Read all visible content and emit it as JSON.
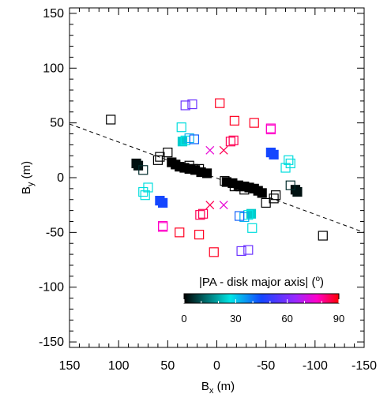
{
  "chart_data": {
    "type": "scatter",
    "title": "",
    "xlabel": "B",
    "xlabel_sub": "x",
    "xlabel_unit": " (m)",
    "ylabel": "B",
    "ylabel_sub": "y",
    "ylabel_unit": " (m)",
    "xlim": [
      150,
      -150
    ],
    "ylim": [
      -155,
      155
    ],
    "x_ticks": [
      150,
      100,
      50,
      0,
      -50,
      -100,
      -150
    ],
    "y_ticks": [
      150,
      100,
      50,
      0,
      -50,
      -100,
      -150
    ],
    "x_tick_labels": [
      "150",
      "100",
      "50",
      "0",
      "-50",
      "-100",
      "-150"
    ],
    "y_tick_labels": [
      "150",
      "100",
      "50",
      "0",
      "-50",
      "-100",
      "-150"
    ],
    "grid": false,
    "colorbar": {
      "label_prefix": "|PA - disk major axis| (",
      "label_super": "o",
      "label_suffix": ")",
      "ticks": [
        0,
        30,
        60,
        90
      ],
      "tick_labels": [
        "0",
        "30",
        "60",
        "90"
      ],
      "range": [
        0,
        90
      ]
    },
    "dashed_line": {
      "x": [
        150,
        -150
      ],
      "y": [
        49,
        -50
      ]
    },
    "points": [
      {
        "x": 108,
        "y": 53,
        "pa": 0,
        "filled": false
      },
      {
        "x": -108,
        "y": -53,
        "pa": 0,
        "filled": false
      },
      {
        "x": 82,
        "y": 13,
        "pa": 2,
        "filled": true
      },
      {
        "x": 80,
        "y": 11,
        "pa": 2,
        "filled": true
      },
      {
        "x": -82,
        "y": -13,
        "pa": 2,
        "filled": true
      },
      {
        "x": -80,
        "y": -11,
        "pa": 2,
        "filled": true
      },
      {
        "x": 75,
        "y": 7,
        "pa": 5,
        "filled": false
      },
      {
        "x": -75,
        "y": -7,
        "pa": 5,
        "filled": false
      },
      {
        "x": 60,
        "y": 16,
        "pa": 0,
        "filled": false
      },
      {
        "x": 58,
        "y": 19,
        "pa": 0,
        "filled": false
      },
      {
        "x": 50,
        "y": 23,
        "pa": 0,
        "filled": false
      },
      {
        "x": -60,
        "y": -16,
        "pa": 0,
        "filled": false
      },
      {
        "x": -58,
        "y": -19,
        "pa": 0,
        "filled": false
      },
      {
        "x": -50,
        "y": -23,
        "pa": 0,
        "filled": false
      },
      {
        "x": 46,
        "y": 14,
        "pa": 0,
        "filled": true
      },
      {
        "x": 42,
        "y": 12,
        "pa": 0,
        "filled": true
      },
      {
        "x": 38,
        "y": 10,
        "pa": 0,
        "filled": true
      },
      {
        "x": 33,
        "y": 9,
        "pa": 0,
        "filled": true
      },
      {
        "x": 28,
        "y": 8,
        "pa": 0,
        "filled": true
      },
      {
        "x": 22,
        "y": 7,
        "pa": 0,
        "filled": true
      },
      {
        "x": 16,
        "y": 5,
        "pa": 0,
        "filled": true
      },
      {
        "x": 10,
        "y": 4,
        "pa": 0,
        "filled": true
      },
      {
        "x": -46,
        "y": -14,
        "pa": 0,
        "filled": true
      },
      {
        "x": -42,
        "y": -12,
        "pa": 0,
        "filled": true
      },
      {
        "x": -38,
        "y": -10,
        "pa": 0,
        "filled": true
      },
      {
        "x": -33,
        "y": -9,
        "pa": 0,
        "filled": true
      },
      {
        "x": -28,
        "y": -8,
        "pa": 0,
        "filled": true
      },
      {
        "x": -22,
        "y": -7,
        "pa": 0,
        "filled": true
      },
      {
        "x": -16,
        "y": -5,
        "pa": 0,
        "filled": true
      },
      {
        "x": -10,
        "y": -4,
        "pa": 0,
        "filled": true
      },
      {
        "x": 28,
        "y": 11,
        "pa": 0,
        "filled": false
      },
      {
        "x": 24,
        "y": 8,
        "pa": 0,
        "filled": false
      },
      {
        "x": -28,
        "y": -11,
        "pa": 0,
        "filled": false
      },
      {
        "x": -24,
        "y": -8,
        "pa": 0,
        "filled": false
      },
      {
        "x": -18,
        "y": -8,
        "pa": 0,
        "filled": false
      },
      {
        "x": 18,
        "y": 8,
        "pa": 0,
        "filled": false
      },
      {
        "x": -8,
        "y": -3,
        "pa": 0,
        "filled": false
      },
      {
        "x": 35,
        "y": 33,
        "pa": 24,
        "filled": true
      },
      {
        "x": -35,
        "y": -33,
        "pa": 24,
        "filled": true
      },
      {
        "x": 36,
        "y": 46,
        "pa": 26,
        "filled": false
      },
      {
        "x": -36,
        "y": -46,
        "pa": 26,
        "filled": false
      },
      {
        "x": 32,
        "y": 34,
        "pa": 27,
        "filled": false
      },
      {
        "x": -32,
        "y": -34,
        "pa": 27,
        "filled": false
      },
      {
        "x": 28,
        "y": 36,
        "pa": 33,
        "filled": false
      },
      {
        "x": -28,
        "y": -36,
        "pa": 33,
        "filled": false
      },
      {
        "x": 23,
        "y": 35,
        "pa": 42,
        "filled": false
      },
      {
        "x": -23,
        "y": -35,
        "pa": 42,
        "filled": false
      },
      {
        "x": 32,
        "y": 66,
        "pa": 58,
        "filled": false
      },
      {
        "x": -32,
        "y": -66,
        "pa": 58,
        "filled": false
      },
      {
        "x": 25,
        "y": 67,
        "pa": 58,
        "filled": false
      },
      {
        "x": -25,
        "y": -67,
        "pa": 58,
        "filled": false
      },
      {
        "x": 7,
        "y": 25,
        "pa": 75,
        "filled": false,
        "marker": "x"
      },
      {
        "x": -7,
        "y": -25,
        "pa": 75,
        "filled": false,
        "marker": "x"
      },
      {
        "x": -7,
        "y": 25,
        "pa": 85,
        "filled": false,
        "marker": "x"
      },
      {
        "x": 7,
        "y": -25,
        "pa": 85,
        "filled": false,
        "marker": "x"
      },
      {
        "x": -3,
        "y": 68,
        "pa": 88,
        "filled": false
      },
      {
        "x": 3,
        "y": -68,
        "pa": 88,
        "filled": false
      },
      {
        "x": -18,
        "y": 52,
        "pa": 88,
        "filled": false
      },
      {
        "x": 18,
        "y": -52,
        "pa": 88,
        "filled": false
      },
      {
        "x": -17,
        "y": 34,
        "pa": 85,
        "filled": false
      },
      {
        "x": -14,
        "y": 33,
        "pa": 85,
        "filled": false
      },
      {
        "x": 17,
        "y": -34,
        "pa": 85,
        "filled": false
      },
      {
        "x": 14,
        "y": -33,
        "pa": 85,
        "filled": false
      },
      {
        "x": -38,
        "y": 50,
        "pa": 88,
        "filled": false
      },
      {
        "x": 38,
        "y": -50,
        "pa": 88,
        "filled": false
      },
      {
        "x": -55,
        "y": 44,
        "pa": 78,
        "filled": false
      },
      {
        "x": -55,
        "y": 45,
        "pa": 78,
        "filled": false
      },
      {
        "x": 55,
        "y": -44,
        "pa": 78,
        "filled": false
      },
      {
        "x": 55,
        "y": -45,
        "pa": 78,
        "filled": false
      },
      {
        "x": -55,
        "y": 23,
        "pa": 45,
        "filled": true
      },
      {
        "x": -58,
        "y": 21,
        "pa": 45,
        "filled": true
      },
      {
        "x": 55,
        "y": -23,
        "pa": 45,
        "filled": true
      },
      {
        "x": 58,
        "y": -21,
        "pa": 45,
        "filled": true
      },
      {
        "x": -73,
        "y": 16,
        "pa": 26,
        "filled": false
      },
      {
        "x": -75,
        "y": 13,
        "pa": 26,
        "filled": false
      },
      {
        "x": -70,
        "y": 9,
        "pa": 26,
        "filled": false
      },
      {
        "x": 73,
        "y": -16,
        "pa": 26,
        "filled": false
      },
      {
        "x": 75,
        "y": -13,
        "pa": 26,
        "filled": false
      },
      {
        "x": 70,
        "y": -9,
        "pa": 26,
        "filled": false
      }
    ]
  }
}
